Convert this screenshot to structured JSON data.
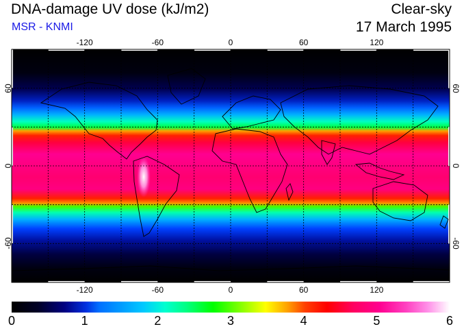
{
  "header": {
    "title": "DNA-damage UV dose (kJ/m2)",
    "subtitle": "MSR - KNMI",
    "sky_condition": "Clear-sky",
    "date": "17 March 1995"
  },
  "map": {
    "longitude_ticks": [
      "-120",
      "-60",
      "0",
      "60",
      "120"
    ],
    "latitude_ticks": [
      "60",
      "0",
      "-60"
    ],
    "right_latitude_ticks": [
      "60",
      "0",
      "-60"
    ],
    "lon_range": [
      -180,
      180
    ],
    "lat_range": [
      -90,
      90
    ],
    "grid": true
  },
  "colorbar": {
    "labels": [
      "0",
      "1",
      "2",
      "3",
      "4",
      "5",
      "6"
    ],
    "range": [
      0,
      6
    ],
    "units": "kJ/m2"
  },
  "colors": {
    "subtitle": "#1a1ae6"
  }
}
